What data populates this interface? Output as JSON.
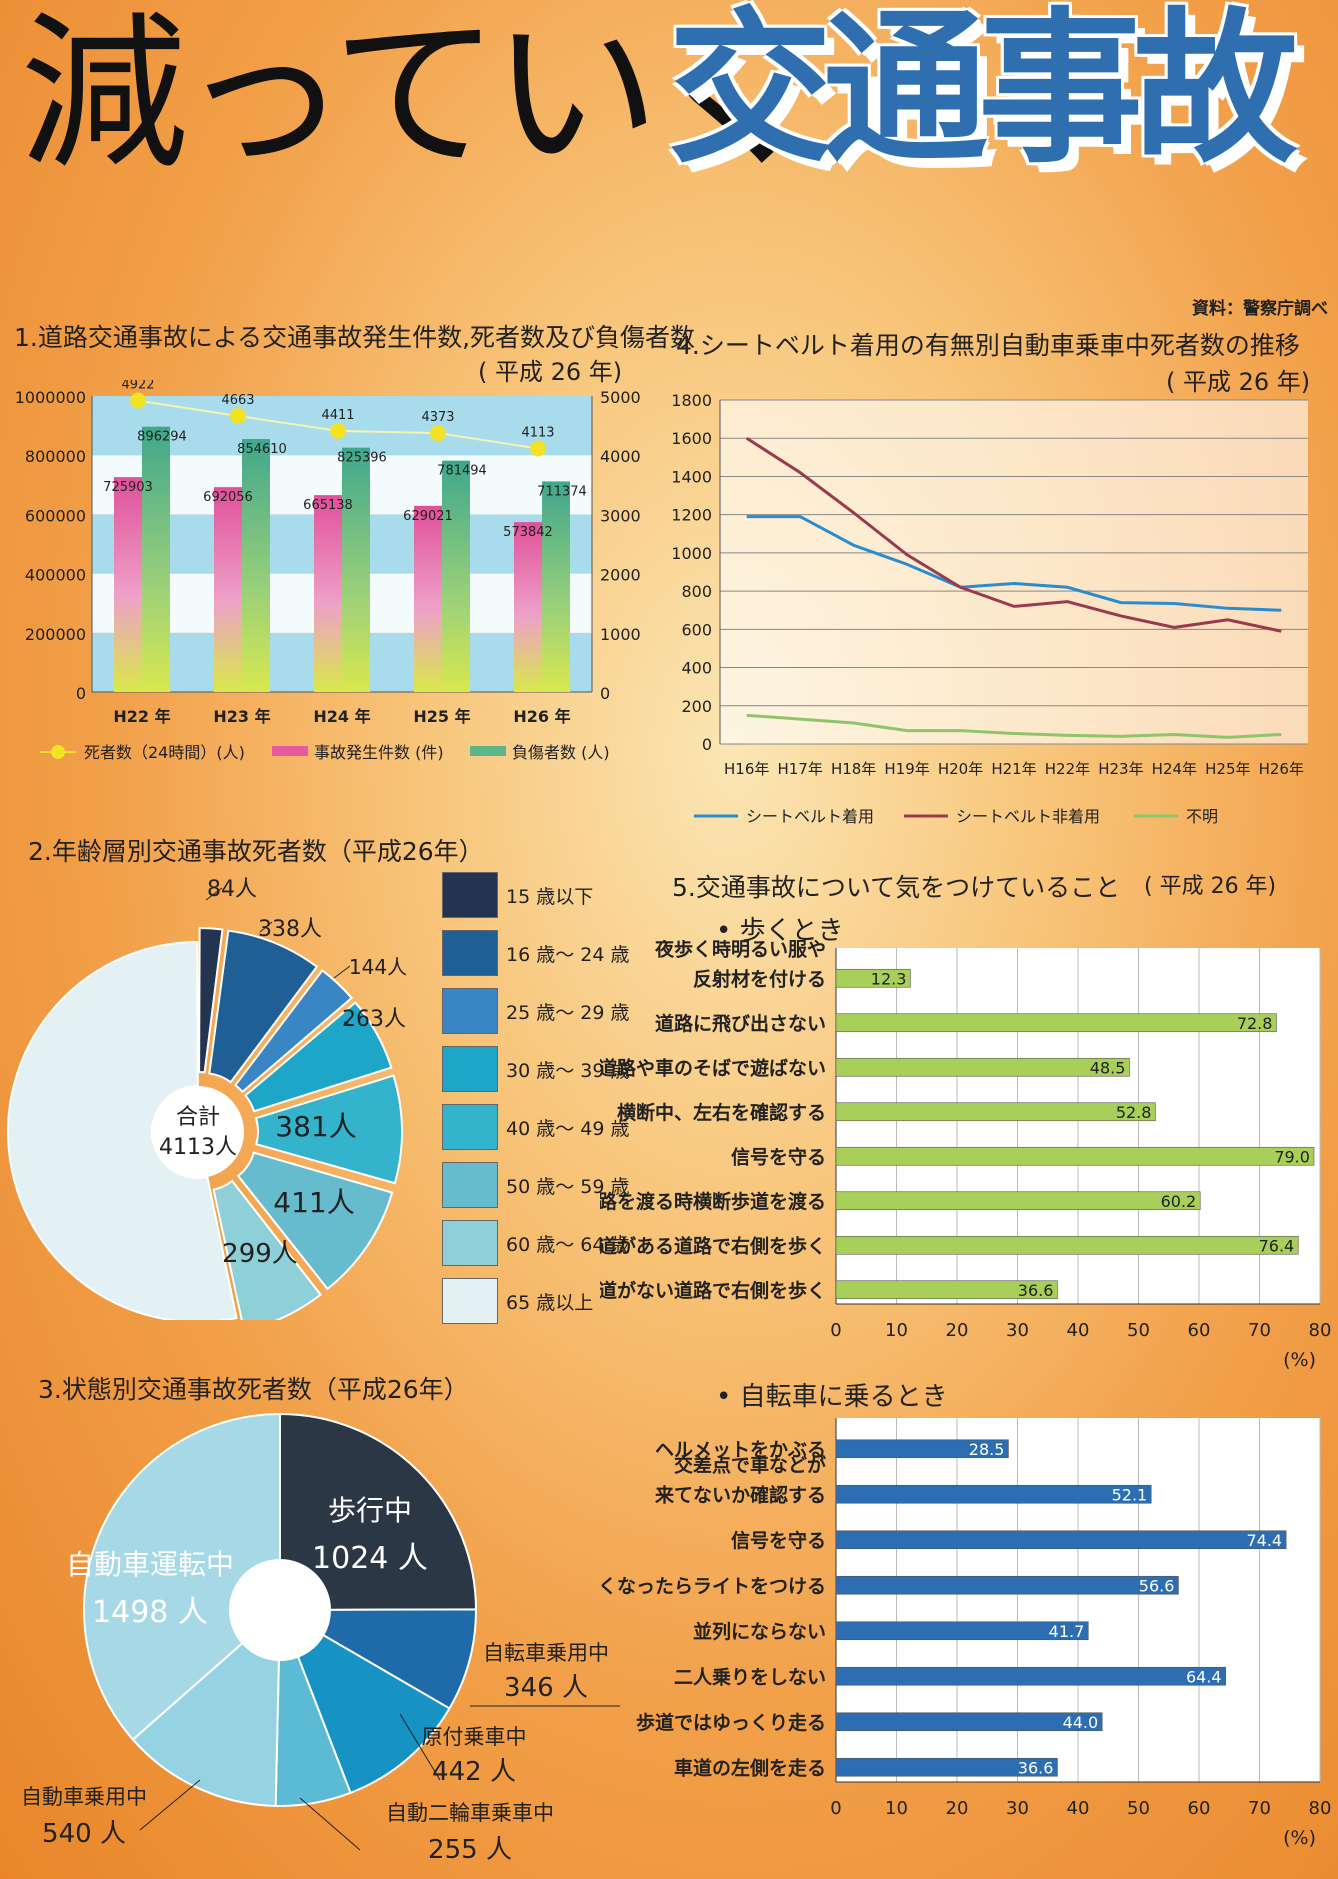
{
  "title": {
    "main": "減っていく",
    "accent": "交通事故"
  },
  "source": "資料：警察庁調べ",
  "colors": {
    "title_accent": "#2f6fb0",
    "accidents": "#e65aa0",
    "injuries": "#5cb68a",
    "deaths": "#f2e324",
    "belt_on": "#2a8ccc",
    "belt_off": "#9a3a4e",
    "unknown": "#8fc46a",
    "walk_bar": "#a8cf5a",
    "bike_bar": "#2d6eb3",
    "status_walk": "#2c3746"
  },
  "sections": {
    "s1": {
      "title": "1.道路交通事故による交通事故発生件数,死者数及び負傷者数",
      "sub": "( 平成 26 年)"
    },
    "s2": {
      "title": "2.年齢層別交通事故死者数（平成26年）"
    },
    "s3": {
      "title": "3.状態別交通事故死者数（平成26年）"
    },
    "s4": {
      "title": "4.シートベルト着用の有無別自動車乗車中死者数の推移",
      "sub": "( 平成 26 年)"
    },
    "s5": {
      "title": "5.交通事故について気をつけていること",
      "sub": "( 平成 26 年)",
      "walk": "• 歩くとき",
      "bike": "• 自転車に乗るとき"
    }
  },
  "chart_data": [
    {
      "id": "chart1",
      "type": "bar",
      "categories": [
        "H22 年",
        "H23 年",
        "H24 年",
        "H25 年",
        "H26 年"
      ],
      "series": [
        {
          "name": "事故発生件数 (件)",
          "values": [
            725903,
            692056,
            665138,
            629021,
            573842
          ],
          "axis": "left"
        },
        {
          "name": "負傷者数 (人)",
          "values": [
            896294,
            854610,
            825396,
            781494,
            711374
          ],
          "axis": "left"
        },
        {
          "name": "死者数（24時間）(人)",
          "values": [
            4922,
            4663,
            4411,
            4373,
            4113
          ],
          "axis": "right",
          "kind": "line"
        }
      ],
      "y_left": {
        "ylim": [
          0,
          1000000
        ],
        "ticks": [
          "0",
          "200000",
          "400000",
          "600000",
          "800000",
          "1000000"
        ]
      },
      "y_right": {
        "ylim": [
          0,
          5000
        ],
        "ticks": [
          "0",
          "1000",
          "2000",
          "3000",
          "4000",
          "5000"
        ]
      },
      "legend": [
        "死者数（24時間）(人)",
        "事故発生件数 (件)",
        "負傷者数 (人)"
      ],
      "legend_position": "bottom"
    },
    {
      "id": "chart4",
      "type": "line",
      "x": [
        "H16年",
        "H17年",
        "H18年",
        "H19年",
        "H20年",
        "H21年",
        "H22年",
        "H23年",
        "H24年",
        "H25年",
        "H26年"
      ],
      "series": [
        {
          "name": "シートベルト着用",
          "values": [
            1190,
            1190,
            1040,
            940,
            820,
            840,
            820,
            740,
            735,
            710,
            700
          ]
        },
        {
          "name": "シートベルト非着用",
          "values": [
            1600,
            1420,
            1210,
            990,
            820,
            720,
            745,
            670,
            610,
            650,
            590
          ]
        },
        {
          "name": "不明",
          "values": [
            150,
            130,
            110,
            70,
            70,
            55,
            45,
            40,
            50,
            35,
            50
          ]
        }
      ],
      "ylim": [
        0,
        1800
      ],
      "y_ticks": [
        "0",
        "200",
        "400",
        "600",
        "800",
        "1000",
        "1200",
        "1400",
        "1600",
        "1800"
      ],
      "grid": true,
      "legend_position": "bottom"
    },
    {
      "id": "chart2",
      "type": "pie",
      "center_label": [
        "合計",
        "4113人"
      ],
      "slices": [
        {
          "label": "15 歳以下",
          "value": 84,
          "text": "84人"
        },
        {
          "label": "16 歳～ 24 歳",
          "value": 338,
          "text": "338人"
        },
        {
          "label": "25 歳～ 29 歳",
          "value": 144,
          "text": "144人"
        },
        {
          "label": "30 歳～ 39 歳",
          "value": 263,
          "text": "263人"
        },
        {
          "label": "40 歳～ 49 歳",
          "value": 381,
          "text": "381人"
        },
        {
          "label": "50 歳～ 59 歳",
          "value": 411,
          "text": "411人"
        },
        {
          "label": "60 歳～ 64 歳",
          "value": 299,
          "text": "299人"
        },
        {
          "label": "65 歳以上",
          "value": 2193,
          "text": ""
        }
      ],
      "slice_colors": [
        "#223450",
        "#1f5f96",
        "#3a86c4",
        "#1ea6c8",
        "#33b3cc",
        "#66bccc",
        "#8fcfd8",
        "#e3f0f4"
      ]
    },
    {
      "id": "chart3",
      "type": "pie",
      "slices": [
        {
          "label": "歩行中",
          "value": 1024,
          "text": "1024 人"
        },
        {
          "label": "自転車乗用中",
          "value": 346,
          "text": "346 人"
        },
        {
          "label": "原付乗車中",
          "value": 442,
          "text": "442 人"
        },
        {
          "label": "自動二輪車乗車中",
          "value": 255,
          "text": "255 人"
        },
        {
          "label": "自動車乗用中",
          "value": 540,
          "text": "540 人"
        },
        {
          "label": "自動車運転中",
          "value": 1498,
          "text": "1498 人"
        }
      ],
      "slice_colors": [
        "#2c3746",
        "#1f6aa8",
        "#1693c3",
        "#5bbad4",
        "#96d3e2",
        "#a6d8e6"
      ]
    },
    {
      "id": "chart5a",
      "type": "bar",
      "orientation": "horizontal",
      "categories": [
        [
          "夜歩く時明るい服や",
          "反射材を付ける"
        ],
        [
          "道路に飛び出さない"
        ],
        [
          "道路や車のそばで遊ばない"
        ],
        [
          "横断中、左右を確認する"
        ],
        [
          "信号を守る"
        ],
        [
          "道路を渡る時横断歩道を渡る"
        ],
        [
          "歩道がある道路で右側を歩く"
        ],
        [
          "歩道がない道路で右側を歩く"
        ]
      ],
      "values": [
        12.3,
        72.8,
        48.5,
        52.8,
        79.0,
        60.2,
        76.4,
        36.6
      ],
      "value_labels": [
        "12.3",
        "72.8",
        "48.5",
        "52.8",
        "79.0",
        "60.2",
        "76.4",
        "36.6"
      ],
      "xlim": [
        0,
        80
      ],
      "x_ticks": [
        "0",
        "10",
        "20",
        "30",
        "40",
        "50",
        "60",
        "70",
        "80"
      ],
      "unit": "(%)",
      "grid": true
    },
    {
      "id": "chart5b",
      "type": "bar",
      "orientation": "horizontal",
      "categories": [
        [
          "ヘルメットをかぶる"
        ],
        [
          "交差点で車などが",
          "来てないか確認する"
        ],
        [
          "信号を守る"
        ],
        [
          "暗くなったらライトをつける"
        ],
        [
          "並列にならない"
        ],
        [
          "二人乗りをしない"
        ],
        [
          "歩道ではゆっくり走る"
        ],
        [
          "車道の左側を走る"
        ]
      ],
      "values": [
        28.5,
        52.1,
        74.4,
        56.6,
        41.7,
        64.4,
        44.0,
        36.6
      ],
      "value_labels": [
        "28.5",
        "52.1",
        "74.4",
        "56.6",
        "41.7",
        "64.4",
        "44.0",
        "36.6"
      ],
      "xlim": [
        0,
        80
      ],
      "x_ticks": [
        "0",
        "10",
        "20",
        "30",
        "40",
        "50",
        "60",
        "70",
        "80"
      ],
      "unit": "(%)",
      "grid": true
    }
  ]
}
